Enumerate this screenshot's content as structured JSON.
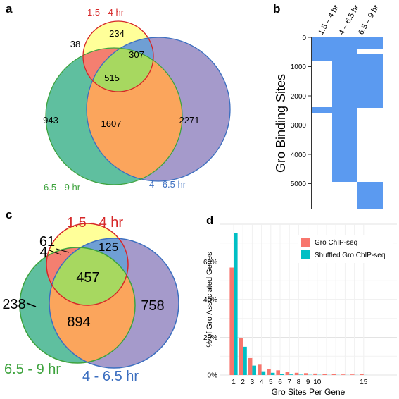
{
  "panels": {
    "a": {
      "letter": "a",
      "set_labels": {
        "early": "1.5 - 4 hr",
        "late": "6.5 - 9 hr",
        "mid": "4 - 6.5 hr"
      },
      "counts": {
        "early_only": "234",
        "early_late": "38",
        "early_mid": "307",
        "all_three": "515",
        "late_only": "943",
        "late_mid": "1607",
        "mid_only": "2271"
      }
    },
    "b": {
      "letter": "b",
      "col_labels": [
        "1.5 – 4 hr",
        "4 – 6.5 hr",
        "6.5 – 9 hr"
      ],
      "y_label": "Gro Binding Sites",
      "y_ticks": [
        "0",
        "1000",
        "2000",
        "3000",
        "4000",
        "5000"
      ]
    },
    "c": {
      "letter": "c",
      "set_labels": {
        "early": "1.5 - 4 hr",
        "late": "6.5 - 9 hr",
        "mid": "4 - 6.5 hr"
      },
      "counts": {
        "early_only": "61",
        "early_late": "4",
        "early_mid": "125",
        "all_three": "457",
        "late_only": "238",
        "late_mid": "894",
        "mid_only": "758"
      }
    },
    "d": {
      "letter": "d",
      "chart_data": {
        "type": "bar",
        "xlabel": "Gro Sites Per Gene",
        "ylabel": "% of Gro Associated Genes",
        "x_tick_labels": [
          "1",
          "2",
          "3",
          "4",
          "5",
          "6",
          "7",
          "8",
          "9",
          "10",
          "15"
        ],
        "y_tick_labels": [
          "0%",
          "20%",
          "40%",
          "60%"
        ],
        "ylim": [
          0,
          80
        ],
        "legend_position": "top-right",
        "categories": [
          1,
          2,
          3,
          4,
          5,
          6,
          7,
          8,
          9,
          10,
          11,
          12,
          13,
          14,
          15
        ],
        "series": [
          {
            "name": "Gro ChIP-seq",
            "color": "#F8766D",
            "values": [
              57,
              19.5,
              9,
              5.5,
              3,
              2.5,
              1.5,
              1.2,
              1,
              0.8,
              0.5,
              0.4,
              0.3,
              0.3,
              0.4
            ]
          },
          {
            "name": "Shuffled Gro ChIP-seq",
            "color": "#00BFC4",
            "values": [
              75.5,
              15,
              5,
              2,
              1.2,
              0.5,
              0.3,
              0.2,
              0.1,
              0.1,
              0.05,
              0.05,
              0.03,
              0.03,
              0.03
            ]
          }
        ]
      }
    }
  },
  "colors": {
    "early_fill": "#ffff99",
    "early_stroke": "#d62728",
    "late_fill": "#5fbf9f",
    "late_stroke": "#3ea33e",
    "mid_fill": "#a59acb",
    "mid_stroke": "#3c6fc0",
    "heat_fill": "#5b9af0"
  }
}
